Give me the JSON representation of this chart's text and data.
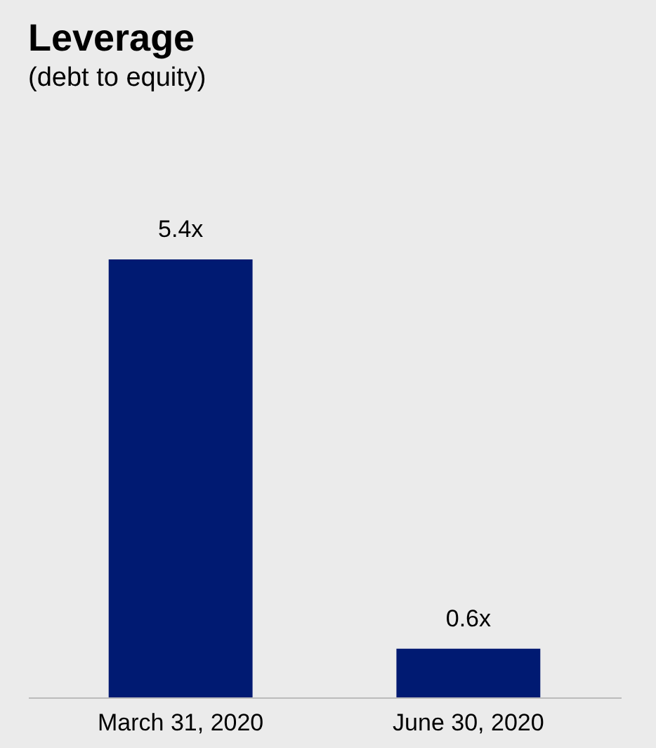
{
  "chart_data": {
    "type": "bar",
    "title": "Leverage",
    "subtitle": "(debt to equity)",
    "categories": [
      "March 31, 2020",
      "June 30, 2020"
    ],
    "values": [
      5.4,
      0.6
    ],
    "value_labels": [
      "5.4x",
      "0.6x"
    ],
    "color": "#001a72",
    "grid": false,
    "tick_labels": "x"
  }
}
